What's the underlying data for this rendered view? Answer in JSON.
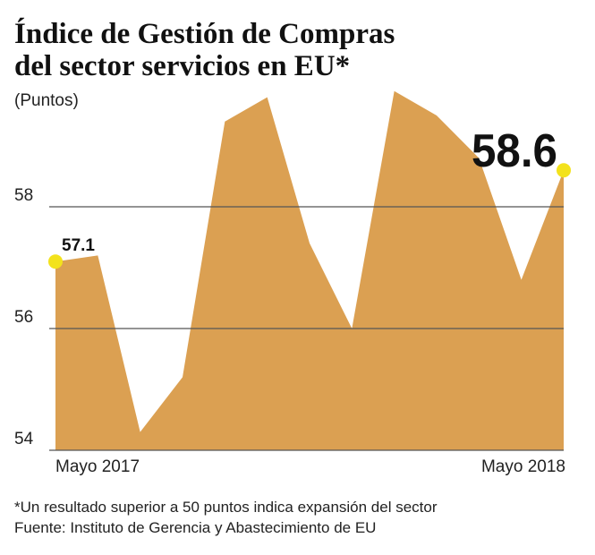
{
  "chart_data": {
    "type": "area",
    "title": [
      "Índice de Gestión de Compras",
      "del sector servicios en EU*"
    ],
    "subtitle": "(Puntos)",
    "categories": [
      "Mayo 2017",
      null,
      null,
      null,
      null,
      null,
      null,
      null,
      null,
      null,
      null,
      null,
      "Mayo 2018"
    ],
    "values": [
      57.1,
      57.2,
      54.3,
      55.2,
      59.4,
      59.8,
      57.4,
      56.0,
      59.9,
      59.5,
      58.8,
      56.8,
      58.6
    ],
    "color": "#dba052",
    "marker_color": "#f3e21c",
    "ylim": [
      54,
      60
    ],
    "yticks": [
      54,
      56,
      58
    ],
    "grid": true,
    "notes": [
      "*Un resultado superior a 50 puntos indica expansión del sector",
      "Fuente: Instituto de Gerencia y Abastecimiento de EU"
    ]
  }
}
